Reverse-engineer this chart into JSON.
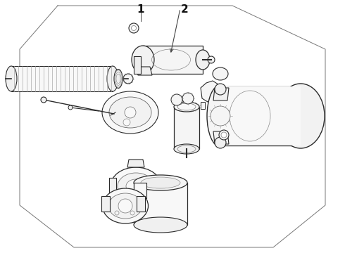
{
  "bg": "#ffffff",
  "lc": "#2a2a2a",
  "lc2": "#555555",
  "lc3": "#888888",
  "fc": "#ffffff",
  "fc2": "#f5f5f5",
  "label_1": "1",
  "label_2": "2",
  "oct_pts_x": [
    82,
    330,
    462,
    462,
    388,
    105,
    28,
    28,
    82
  ],
  "oct_pts_y": [
    352,
    352,
    290,
    68,
    8,
    8,
    68,
    290,
    352
  ]
}
